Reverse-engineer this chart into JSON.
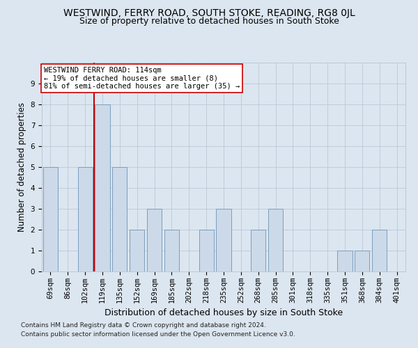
{
  "title": "WESTWIND, FERRY ROAD, SOUTH STOKE, READING, RG8 0JL",
  "subtitle": "Size of property relative to detached houses in South Stoke",
  "xlabel": "Distribution of detached houses by size in South Stoke",
  "ylabel": "Number of detached properties",
  "categories": [
    "69sqm",
    "86sqm",
    "102sqm",
    "119sqm",
    "135sqm",
    "152sqm",
    "169sqm",
    "185sqm",
    "202sqm",
    "218sqm",
    "235sqm",
    "252sqm",
    "268sqm",
    "285sqm",
    "301sqm",
    "318sqm",
    "335sqm",
    "351sqm",
    "368sqm",
    "384sqm",
    "401sqm"
  ],
  "values": [
    5,
    0,
    5,
    8,
    5,
    2,
    3,
    2,
    0,
    2,
    3,
    0,
    2,
    3,
    0,
    0,
    0,
    1,
    1,
    2,
    0
  ],
  "bar_color": "#ccd9e8",
  "bar_edge_color": "#7a9fbf",
  "vline_x_index": 2.5,
  "vline_color": "#cc0000",
  "annotation_line1": "WESTWIND FERRY ROAD: 114sqm",
  "annotation_line2": "← 19% of detached houses are smaller (8)",
  "annotation_line3": "81% of semi-detached houses are larger (35) →",
  "annotation_box_color": "#ffffff",
  "annotation_box_edge": "#cc0000",
  "ylim": [
    0,
    10
  ],
  "yticks": [
    0,
    1,
    2,
    3,
    4,
    5,
    6,
    7,
    8,
    9,
    10
  ],
  "grid_color": "#bcc8d8",
  "bg_color": "#dce6f0",
  "footnote1": "Contains HM Land Registry data © Crown copyright and database right 2024.",
  "footnote2": "Contains public sector information licensed under the Open Government Licence v3.0.",
  "title_fontsize": 10,
  "subtitle_fontsize": 9,
  "xlabel_fontsize": 9,
  "ylabel_fontsize": 8.5,
  "tick_fontsize": 7.5,
  "annot_fontsize": 7.5,
  "footnote_fontsize": 6.5
}
